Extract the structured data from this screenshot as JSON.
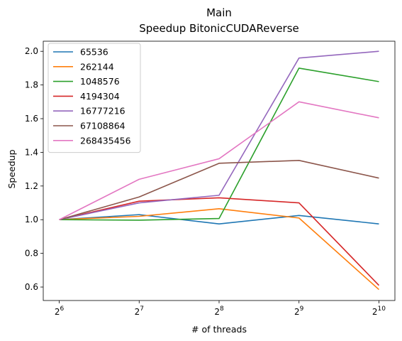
{
  "chart_data": {
    "type": "line",
    "title": "Main",
    "subtitle": "Speedup BitonicCUDAReverse",
    "xlabel": "# of threads",
    "ylabel": "Speedup",
    "x_scale": "log2",
    "x": [
      64,
      128,
      256,
      512,
      1024
    ],
    "x_tick_labels": [
      {
        "base": "2",
        "exp": "6"
      },
      {
        "base": "2",
        "exp": "7"
      },
      {
        "base": "2",
        "exp": "8"
      },
      {
        "base": "2",
        "exp": "9"
      },
      {
        "base": "2",
        "exp": "10"
      }
    ],
    "ylim": [
      0.52,
      2.06
    ],
    "y_ticks": [
      0.6,
      0.8,
      1.0,
      1.2,
      1.4,
      1.6,
      1.8,
      2.0
    ],
    "y_tick_labels": [
      "0.6",
      "0.8",
      "1.0",
      "1.2",
      "1.4",
      "1.6",
      "1.8",
      "2.0"
    ],
    "grid": false,
    "legend_position": "top-left",
    "series": [
      {
        "name": "65536",
        "color": "#1f77b4",
        "values": [
          1.0,
          1.03,
          0.975,
          1.025,
          0.975
        ]
      },
      {
        "name": "262144",
        "color": "#ff7f0e",
        "values": [
          1.0,
          1.02,
          1.065,
          1.01,
          0.585
        ]
      },
      {
        "name": "1048576",
        "color": "#2ca02c",
        "values": [
          1.0,
          0.997,
          1.007,
          1.9,
          1.82
        ]
      },
      {
        "name": "4194304",
        "color": "#d62728",
        "values": [
          1.0,
          1.11,
          1.13,
          1.1,
          0.61
        ]
      },
      {
        "name": "16777216",
        "color": "#9467bd",
        "values": [
          1.0,
          1.1,
          1.145,
          1.96,
          2.0
        ]
      },
      {
        "name": "67108864",
        "color": "#8c564b",
        "values": [
          1.0,
          1.135,
          1.335,
          1.352,
          1.247
        ]
      },
      {
        "name": "268435456",
        "color": "#e377c2",
        "values": [
          1.0,
          1.24,
          1.362,
          1.7,
          1.605
        ]
      }
    ]
  }
}
